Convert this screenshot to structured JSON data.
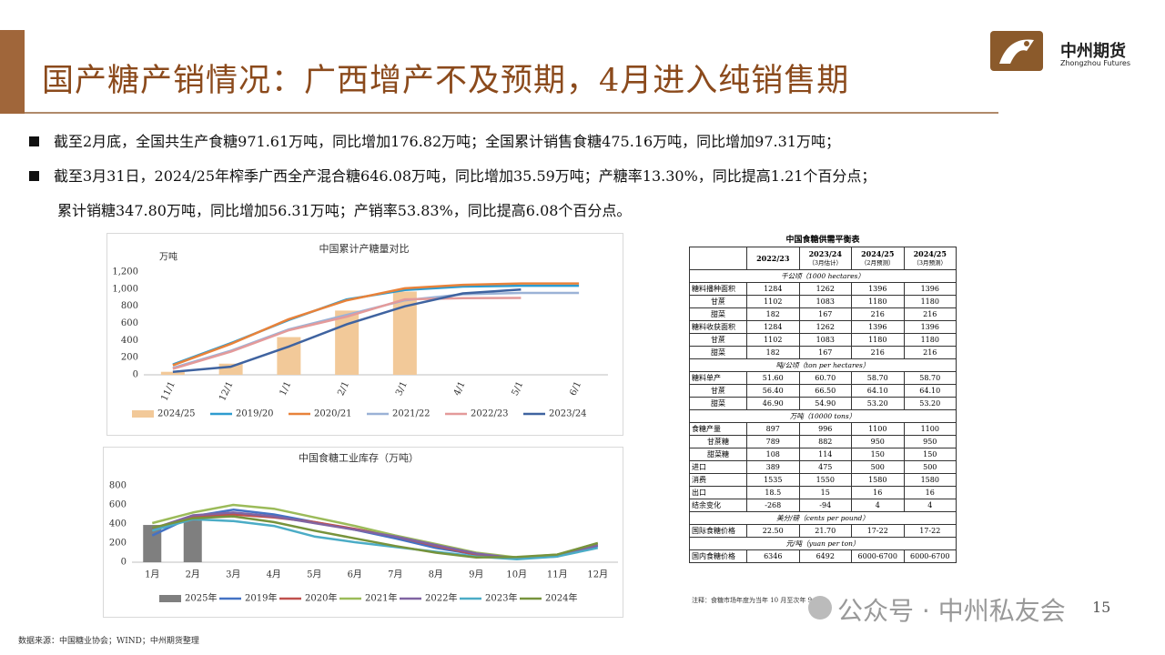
{
  "header": {
    "title": "国产糖产销情况：广西增产不及预期，4月进入纯销售期",
    "logo_name": "中州期货",
    "logo_sub": "Zhongzhou Futures"
  },
  "bullets": [
    [
      "截至2月底，全国共生产食糖971.61万吨，同比增加176.82万吨；全国累计销售食糖475.16万吨，同比增加97.31万吨；"
    ],
    [
      "截至3月31日，2024/25年榨季广西全产混合糖646.08万吨，同比增加35.59万吨；产糖率13.30%，同比提高1.21个百分点；",
      "累计销糖347.80万吨，同比增加56.31万吨；产销率53.83%，同比提高6.08个百分点。"
    ]
  ],
  "chart_data": [
    {
      "type": "combo",
      "title": "中国累计产糖量对比",
      "y_label": "万吨",
      "categories": [
        "11/1",
        "12/1",
        "1/1",
        "2/1",
        "3/1",
        "4/1",
        "5/1",
        "6/1"
      ],
      "ylim": [
        0,
        1200
      ],
      "yticks": [
        0,
        200,
        400,
        600,
        800,
        {
          "value": 1000,
          "label": "1,000"
        },
        {
          "value": 1200,
          "label": "1,200"
        }
      ],
      "grid": false,
      "series": [
        {
          "name": "2024/25",
          "type": "bar",
          "color": "#f2c999",
          "values": [
            35,
            130,
            440,
            750,
            972,
            null,
            null,
            null
          ]
        },
        {
          "name": "2019/20",
          "type": "line",
          "color": "#2e9ccf",
          "values": [
            120,
            370,
            640,
            880,
            990,
            1030,
            1040,
            1040
          ]
        },
        {
          "name": "2020/21",
          "type": "line",
          "color": "#e8823a",
          "values": [
            110,
            360,
            650,
            870,
            1010,
            1050,
            1066,
            1066
          ]
        },
        {
          "name": "2021/22",
          "type": "line",
          "color": "#9bb2d6",
          "values": [
            80,
            280,
            530,
            700,
            870,
            940,
            956,
            956
          ]
        },
        {
          "name": "2022/23",
          "type": "line",
          "color": "#e49a9a",
          "values": [
            70,
            270,
            520,
            680,
            880,
            895,
            897,
            null
          ]
        },
        {
          "name": "2023/24",
          "type": "line",
          "color": "#3f63a0",
          "values": [
            35,
            95,
            330,
            590,
            800,
            950,
            996,
            null
          ]
        }
      ]
    },
    {
      "type": "combo",
      "title": "中国食糖工业库存（万吨）",
      "categories": [
        "1月",
        "2月",
        "3月",
        "4月",
        "5月",
        "6月",
        "7月",
        "8月",
        "9月",
        "10月",
        "11月",
        "12月"
      ],
      "ylim": [
        0,
        800
      ],
      "yticks": [
        0,
        200,
        400,
        600,
        800
      ],
      "grid": false,
      "series": [
        {
          "name": "2025年",
          "type": "bar",
          "color": "#7f7f7f",
          "values": [
            390,
            470,
            null,
            null,
            null,
            null,
            null,
            null,
            null,
            null,
            null,
            null
          ]
        },
        {
          "name": "2019年",
          "type": "line",
          "color": "#4472c4",
          "values": [
            280,
            480,
            550,
            500,
            420,
            340,
            250,
            150,
            80,
            40,
            60,
            170
          ]
        },
        {
          "name": "2020年",
          "type": "line",
          "color": "#c0504d",
          "values": [
            350,
            480,
            500,
            470,
            420,
            350,
            270,
            170,
            80,
            40,
            70,
            180
          ]
        },
        {
          "name": "2021年",
          "type": "line",
          "color": "#9bbb59",
          "values": [
            410,
            520,
            600,
            560,
            470,
            380,
            280,
            190,
            100,
            50,
            80,
            200
          ]
        },
        {
          "name": "2022年",
          "type": "line",
          "color": "#8064a2",
          "values": [
            350,
            490,
            520,
            480,
            410,
            340,
            270,
            180,
            90,
            40,
            70,
            180
          ]
        },
        {
          "name": "2023年",
          "type": "line",
          "color": "#4bacc6",
          "values": [
            330,
            450,
            430,
            380,
            270,
            210,
            160,
            110,
            60,
            30,
            60,
            150
          ]
        },
        {
          "name": "2024年",
          "type": "line",
          "color": "#77933c",
          "values": [
            360,
            460,
            480,
            420,
            330,
            250,
            170,
            100,
            50,
            55,
            80,
            200
          ]
        }
      ]
    }
  ],
  "table": {
    "title": "中国食糖供需平衡表",
    "columns": [
      {
        "label": "2022/23"
      },
      {
        "label": "2023/24",
        "note": "（3月估计）"
      },
      {
        "label": "2024/25",
        "note": "（2月预测）"
      },
      {
        "label": "2024/25",
        "note": "（3月预测）"
      }
    ],
    "sections": [
      {
        "unit": "千公顷（1000 hectares）",
        "items": [
          {
            "label": "糖料播种面积",
            "values": [
              "1284",
              "1262",
              "1396",
              "1396"
            ],
            "sub": [
              {
                "label": "甘蔗",
                "values": [
                  "1102",
                  "1083",
                  "1180",
                  "1180"
                ]
              },
              {
                "label": "甜菜",
                "values": [
                  "182",
                  "167",
                  "216",
                  "216"
                ]
              }
            ]
          },
          {
            "label": "糖料收获面积",
            "values": [
              "1284",
              "1262",
              "1396",
              "1396"
            ],
            "sub": [
              {
                "label": "甘蔗",
                "values": [
                  "1102",
                  "1083",
                  "1180",
                  "1180"
                ]
              },
              {
                "label": "甜菜",
                "values": [
                  "182",
                  "167",
                  "216",
                  "216"
                ]
              }
            ]
          }
        ]
      },
      {
        "unit": "吨/公顷（ton per hectares）",
        "items": [
          {
            "label": "糖料单产",
            "values": [
              "51.60",
              "60.70",
              "58.70",
              "58.70"
            ],
            "sub": [
              {
                "label": "甘蔗",
                "values": [
                  "56.40",
                  "66.50",
                  "64.10",
                  "64.10"
                ]
              },
              {
                "label": "甜菜",
                "values": [
                  "46.90",
                  "54.90",
                  "53.20",
                  "53.20"
                ]
              }
            ]
          }
        ]
      },
      {
        "unit": "万吨（10000 tons）",
        "items": [
          {
            "label": "食糖产量",
            "values": [
              "897",
              "996",
              "1100",
              "1100"
            ],
            "sub": [
              {
                "label": "甘蔗糖",
                "values": [
                  "789",
                  "882",
                  "950",
                  "950"
                ]
              },
              {
                "label": "甜菜糖",
                "values": [
                  "108",
                  "114",
                  "150",
                  "150"
                ]
              }
            ]
          },
          {
            "label": "进口",
            "values": [
              "389",
              "475",
              "500",
              "500"
            ]
          },
          {
            "label": "消费",
            "values": [
              "1535",
              "1550",
              "1580",
              "1580"
            ]
          },
          {
            "label": "出口",
            "values": [
              "18.5",
              "15",
              "16",
              "16"
            ]
          },
          {
            "label": "结余变化",
            "values": [
              "-268",
              "-94",
              "4",
              "4"
            ]
          }
        ]
      },
      {
        "unit": "美分/磅（cents per pound）",
        "items": [
          {
            "label": "国际食糖价格",
            "values": [
              "22.50",
              "21.70",
              "17-22",
              "17-22"
            ]
          }
        ]
      },
      {
        "unit": "元/吨（yuan per ton）",
        "items": [
          {
            "label": "国内食糖价格",
            "values": [
              "6346",
              "6492",
              "6000-6700",
              "6000-6700"
            ]
          }
        ]
      }
    ],
    "note": "注释：食糖市场年度为当年 10 月至次年 9 月。"
  },
  "footer": {
    "source": "数据来源：中国糖业协会；WIND；中州期货整理",
    "watermark": "公众号 · 中州私友会",
    "page": "15"
  }
}
